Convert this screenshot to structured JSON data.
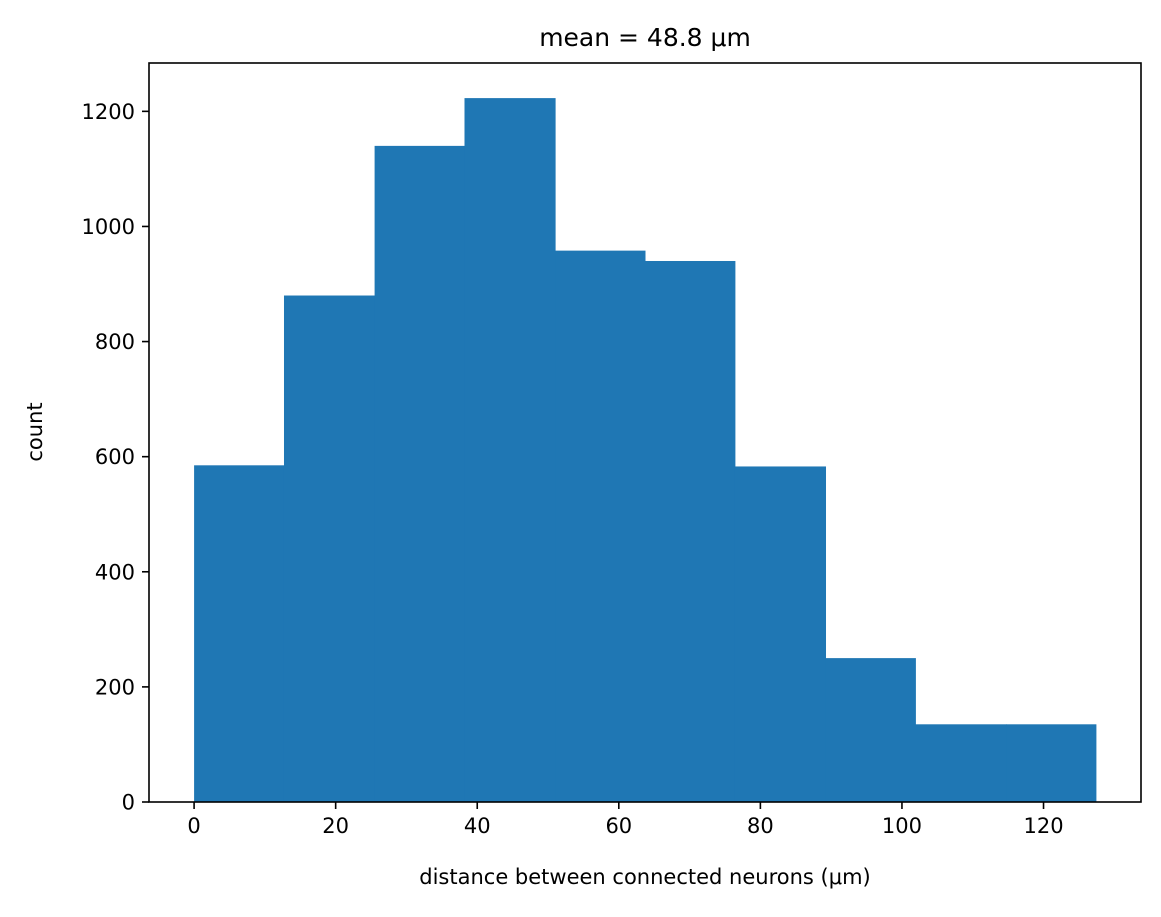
{
  "chart_data": {
    "type": "bar",
    "title": "mean = 48.8 μm",
    "xlabel": "distance between connected neurons (μm)",
    "ylabel": "count",
    "bins": [
      {
        "start": 0.0,
        "end": 12.7,
        "count": 585
      },
      {
        "start": 12.7,
        "end": 25.5,
        "count": 880
      },
      {
        "start": 25.5,
        "end": 38.2,
        "count": 1140
      },
      {
        "start": 38.2,
        "end": 51.0,
        "count": 1223
      },
      {
        "start": 51.0,
        "end": 63.7,
        "count": 958
      },
      {
        "start": 63.7,
        "end": 76.4,
        "count": 940
      },
      {
        "start": 76.4,
        "end": 89.2,
        "count": 583
      },
      {
        "start": 89.2,
        "end": 101.9,
        "count": 250
      },
      {
        "start": 101.9,
        "end": 114.7,
        "count": 135
      },
      {
        "start": 114.7,
        "end": 127.4,
        "count": 135
      }
    ],
    "xlim": [
      -6.37,
      133.77
    ],
    "ylim": [
      0,
      1284
    ],
    "xticks": [
      0,
      20,
      40,
      60,
      80,
      100,
      120
    ],
    "yticks": [
      0,
      200,
      400,
      600,
      800,
      1000,
      1200
    ],
    "bar_color": "#1f77b4",
    "grid": false,
    "legend": false
  }
}
